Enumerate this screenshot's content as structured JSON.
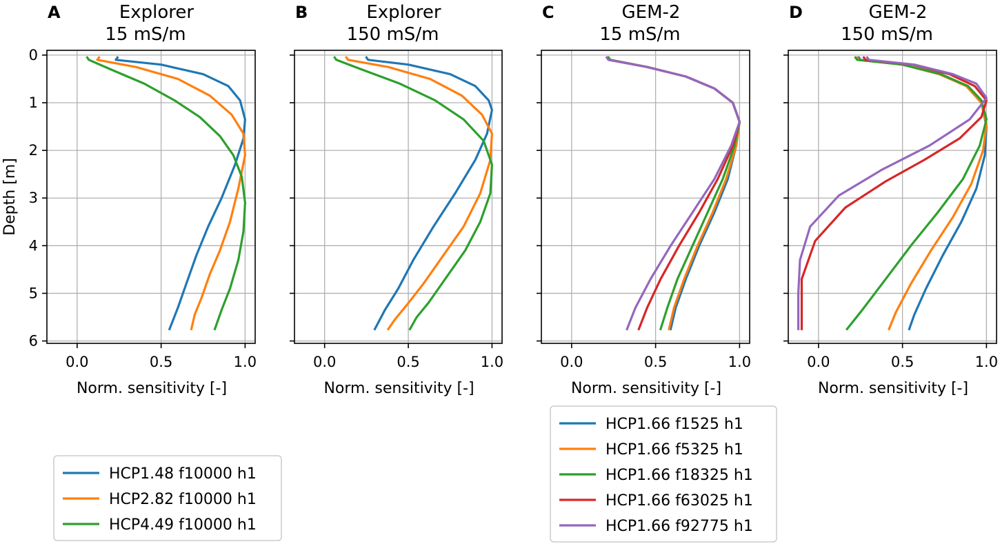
{
  "colors": {
    "blue": "#1f77b4",
    "orange": "#ff7f0e",
    "green": "#2ca02c",
    "red": "#d62728",
    "purple": "#9467bd",
    "grid": "#b0b0b0"
  },
  "chart_data": [
    {
      "type": "line",
      "panel_letter": "A",
      "title_lines": [
        "Explorer",
        "15 mS/m"
      ],
      "xlabel": "Norm. sensitivity [-]",
      "ylabel": "Depth [m]",
      "xlim": [
        -0.18,
        1.06
      ],
      "ylim": [
        6.05,
        -0.1
      ],
      "x_ticks": [
        0.0,
        0.5,
        1.0
      ],
      "x_tick_labels": [
        "0.0",
        "0.5",
        "1.0"
      ],
      "y_ticks": [
        0,
        1,
        2,
        3,
        4,
        5,
        6
      ],
      "y_tick_labels": [
        "0",
        "1",
        "2",
        "3",
        "4",
        "5",
        "6"
      ],
      "grid": true,
      "legend_location": "bottom-left, below plot",
      "series": [
        {
          "name": "HCP1.48 f10000 h1",
          "color": "blue",
          "x": [
            0.24,
            0.23,
            0.5,
            0.75,
            0.9,
            0.97,
            1.0,
            0.99,
            0.94,
            0.86,
            0.78,
            0.71,
            0.65,
            0.6,
            0.55
          ],
          "depth": [
            0.05,
            0.1,
            0.2,
            0.4,
            0.65,
            0.95,
            1.35,
            1.75,
            2.3,
            3.0,
            3.6,
            4.2,
            4.8,
            5.3,
            5.75
          ]
        },
        {
          "name": "HCP2.82 f10000 h1",
          "color": "orange",
          "x": [
            0.13,
            0.12,
            0.35,
            0.6,
            0.79,
            0.92,
            0.99,
            1.0,
            0.96,
            0.91,
            0.85,
            0.79,
            0.74,
            0.7,
            0.68
          ],
          "depth": [
            0.05,
            0.1,
            0.25,
            0.5,
            0.85,
            1.25,
            1.65,
            2.1,
            2.8,
            3.5,
            4.1,
            4.6,
            5.1,
            5.45,
            5.75
          ]
        },
        {
          "name": "HCP4.49 f10000 h1",
          "color": "green",
          "x": [
            0.06,
            0.07,
            0.2,
            0.4,
            0.58,
            0.73,
            0.85,
            0.93,
            0.98,
            1.0,
            0.99,
            0.96,
            0.91,
            0.86,
            0.82
          ],
          "depth": [
            0.05,
            0.1,
            0.3,
            0.6,
            0.95,
            1.3,
            1.7,
            2.1,
            2.55,
            3.1,
            3.7,
            4.3,
            4.9,
            5.35,
            5.75
          ]
        }
      ]
    },
    {
      "type": "line",
      "panel_letter": "B",
      "title_lines": [
        "Explorer",
        "150 mS/m"
      ],
      "xlabel": "Norm. sensitivity [-]",
      "ylabel": "",
      "xlim": [
        -0.18,
        1.06
      ],
      "ylim": [
        6.05,
        -0.1
      ],
      "x_ticks": [
        0.0,
        0.5,
        1.0
      ],
      "x_tick_labels": [
        "0.0",
        "0.5",
        "1.0"
      ],
      "y_ticks": [
        0,
        1,
        2,
        3,
        4,
        5,
        6
      ],
      "y_tick_labels": [],
      "grid": true,
      "series": [
        {
          "name": "HCP1.48 f10000 h1",
          "color": "blue",
          "x": [
            0.25,
            0.26,
            0.5,
            0.75,
            0.9,
            0.98,
            1.0,
            0.97,
            0.9,
            0.78,
            0.65,
            0.53,
            0.44,
            0.36,
            0.3
          ],
          "depth": [
            0.05,
            0.1,
            0.2,
            0.4,
            0.65,
            0.95,
            1.15,
            1.65,
            2.2,
            2.9,
            3.6,
            4.3,
            4.9,
            5.35,
            5.75
          ]
        },
        {
          "name": "HCP2.82 f10000 h1",
          "color": "orange",
          "x": [
            0.13,
            0.14,
            0.38,
            0.63,
            0.82,
            0.94,
            1.0,
            0.99,
            0.93,
            0.83,
            0.71,
            0.59,
            0.49,
            0.42,
            0.38
          ],
          "depth": [
            0.05,
            0.1,
            0.25,
            0.5,
            0.85,
            1.25,
            1.65,
            2.2,
            2.9,
            3.6,
            4.2,
            4.8,
            5.25,
            5.55,
            5.75
          ]
        },
        {
          "name": "HCP4.49 f10000 h1",
          "color": "green",
          "x": [
            0.06,
            0.07,
            0.22,
            0.45,
            0.66,
            0.83,
            0.95,
            1.0,
            0.99,
            0.93,
            0.84,
            0.72,
            0.62,
            0.55,
            0.51
          ],
          "depth": [
            0.05,
            0.1,
            0.3,
            0.6,
            0.95,
            1.35,
            1.8,
            2.3,
            2.9,
            3.5,
            4.1,
            4.7,
            5.2,
            5.5,
            5.75
          ]
        }
      ]
    },
    {
      "type": "line",
      "panel_letter": "C",
      "title_lines": [
        "GEM-2",
        "15 mS/m"
      ],
      "xlabel": "Norm. sensitivity [-]",
      "ylabel": "",
      "xlim": [
        -0.18,
        1.06
      ],
      "ylim": [
        6.05,
        -0.1
      ],
      "x_ticks": [
        0.0,
        0.5,
        1.0
      ],
      "x_tick_labels": [
        "0.0",
        "0.5",
        "1.0"
      ],
      "y_ticks": [
        0,
        1,
        2,
        3,
        4,
        5,
        6
      ],
      "y_tick_labels": [],
      "grid": true,
      "legend_location": "below plot",
      "series": [
        {
          "name": "HCP1.66 f1525 h1",
          "color": "blue",
          "x": [
            0.22,
            0.23,
            0.45,
            0.68,
            0.85,
            0.96,
            1.0,
            0.98,
            0.93,
            0.85,
            0.76,
            0.68,
            0.62,
            0.59
          ],
          "depth": [
            0.05,
            0.1,
            0.25,
            0.45,
            0.7,
            1.0,
            1.4,
            1.9,
            2.6,
            3.3,
            4.0,
            4.7,
            5.3,
            5.75
          ]
        },
        {
          "name": "HCP1.66 f5325 h1",
          "color": "orange",
          "x": [
            0.22,
            0.23,
            0.45,
            0.68,
            0.85,
            0.96,
            1.0,
            0.98,
            0.92,
            0.84,
            0.75,
            0.67,
            0.61,
            0.58
          ],
          "depth": [
            0.05,
            0.1,
            0.25,
            0.45,
            0.7,
            1.0,
            1.4,
            1.9,
            2.6,
            3.3,
            4.0,
            4.7,
            5.3,
            5.75
          ]
        },
        {
          "name": "HCP1.66 f18325 h1",
          "color": "green",
          "x": [
            0.22,
            0.23,
            0.45,
            0.68,
            0.85,
            0.96,
            1.0,
            0.97,
            0.9,
            0.81,
            0.72,
            0.63,
            0.57,
            0.53
          ],
          "depth": [
            0.05,
            0.1,
            0.25,
            0.45,
            0.7,
            1.0,
            1.4,
            1.9,
            2.6,
            3.3,
            4.0,
            4.7,
            5.3,
            5.75
          ]
        },
        {
          "name": "HCP1.66 f63025 h1",
          "color": "red",
          "x": [
            0.21,
            0.22,
            0.45,
            0.68,
            0.85,
            0.96,
            1.0,
            0.96,
            0.87,
            0.76,
            0.64,
            0.53,
            0.45,
            0.4
          ],
          "depth": [
            0.05,
            0.1,
            0.25,
            0.45,
            0.7,
            1.0,
            1.4,
            1.9,
            2.6,
            3.3,
            4.0,
            4.7,
            5.3,
            5.75
          ]
        },
        {
          "name": "HCP1.66 f92775 h1",
          "color": "purple",
          "x": [
            0.21,
            0.22,
            0.45,
            0.68,
            0.85,
            0.96,
            1.0,
            0.95,
            0.85,
            0.72,
            0.59,
            0.47,
            0.38,
            0.33
          ],
          "depth": [
            0.05,
            0.1,
            0.25,
            0.45,
            0.7,
            1.0,
            1.4,
            1.9,
            2.6,
            3.3,
            4.0,
            4.7,
            5.3,
            5.75
          ]
        }
      ]
    },
    {
      "type": "line",
      "panel_letter": "D",
      "title_lines": [
        "GEM-2",
        "150 mS/m"
      ],
      "xlabel": "Norm. sensitivity [-]",
      "ylabel": "",
      "xlim": [
        -0.18,
        1.06
      ],
      "ylim": [
        6.05,
        -0.1
      ],
      "x_ticks": [
        0.0,
        0.5,
        1.0
      ],
      "x_tick_labels": [
        "0.0",
        "0.5",
        "1.0"
      ],
      "y_ticks": [
        0,
        1,
        2,
        3,
        4,
        5,
        6
      ],
      "y_tick_labels": [],
      "grid": true,
      "series": [
        {
          "name": "HCP1.66 f1525 h1",
          "color": "blue",
          "x": [
            0.24,
            0.25,
            0.5,
            0.72,
            0.88,
            0.97,
            1.0,
            0.99,
            0.94,
            0.85,
            0.74,
            0.64,
            0.57,
            0.54
          ],
          "depth": [
            0.05,
            0.1,
            0.2,
            0.4,
            0.65,
            1.0,
            1.5,
            2.1,
            2.8,
            3.5,
            4.2,
            4.9,
            5.45,
            5.75
          ]
        },
        {
          "name": "HCP1.66 f5325 h1",
          "color": "orange",
          "x": [
            0.23,
            0.24,
            0.5,
            0.72,
            0.88,
            0.97,
            1.0,
            0.98,
            0.91,
            0.8,
            0.67,
            0.55,
            0.46,
            0.42
          ],
          "depth": [
            0.05,
            0.1,
            0.2,
            0.4,
            0.65,
            1.0,
            1.45,
            2.0,
            2.7,
            3.4,
            4.1,
            4.8,
            5.4,
            5.75
          ]
        },
        {
          "name": "HCP1.66 f18325 h1",
          "color": "green",
          "x": [
            0.22,
            0.23,
            0.5,
            0.73,
            0.89,
            0.97,
            1.0,
            0.96,
            0.86,
            0.71,
            0.55,
            0.4,
            0.26,
            0.17
          ],
          "depth": [
            0.05,
            0.1,
            0.2,
            0.4,
            0.65,
            0.95,
            1.35,
            1.9,
            2.6,
            3.3,
            4.0,
            4.7,
            5.35,
            5.75
          ]
        },
        {
          "name": "HCP1.66 f63025 h1",
          "color": "red",
          "x": [
            0.27,
            0.28,
            0.56,
            0.78,
            0.93,
            1.0,
            0.97,
            0.84,
            0.63,
            0.4,
            0.16,
            -0.02,
            -0.1,
            -0.1
          ],
          "depth": [
            0.05,
            0.1,
            0.2,
            0.4,
            0.65,
            0.95,
            1.3,
            1.75,
            2.2,
            2.65,
            3.2,
            3.9,
            4.7,
            5.75
          ]
        },
        {
          "name": "HCP1.66 f92775 h1",
          "color": "purple",
          "x": [
            0.29,
            0.3,
            0.57,
            0.8,
            0.94,
            1.0,
            0.9,
            0.66,
            0.38,
            0.12,
            -0.05,
            -0.11,
            -0.12,
            -0.12
          ],
          "depth": [
            0.05,
            0.1,
            0.2,
            0.4,
            0.6,
            0.9,
            1.35,
            1.9,
            2.4,
            2.95,
            3.6,
            4.3,
            5.0,
            5.75
          ]
        }
      ]
    }
  ],
  "legends": [
    {
      "panel": "A",
      "entries": [
        {
          "label": "HCP1.48 f10000 h1",
          "color": "blue"
        },
        {
          "label": "HCP2.82 f10000 h1",
          "color": "orange"
        },
        {
          "label": "HCP4.49 f10000 h1",
          "color": "green"
        }
      ]
    },
    {
      "panel": "C",
      "entries": [
        {
          "label": "HCP1.66 f1525 h1",
          "color": "blue"
        },
        {
          "label": "HCP1.66 f5325 h1",
          "color": "orange"
        },
        {
          "label": "HCP1.66 f18325 h1",
          "color": "green"
        },
        {
          "label": "HCP1.66 f63025 h1",
          "color": "red"
        },
        {
          "label": "HCP1.66 f92775 h1",
          "color": "purple"
        }
      ]
    }
  ]
}
